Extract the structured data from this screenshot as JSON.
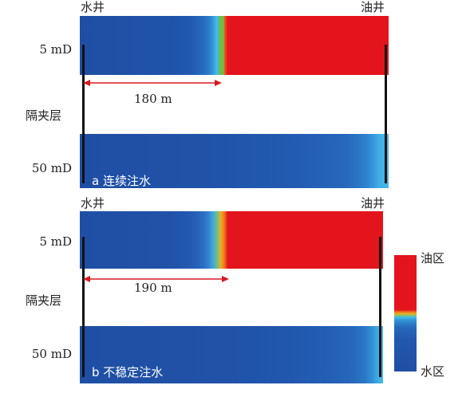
{
  "panel_a": {
    "water_well": "水井",
    "oil_well": "油井",
    "top_perm": "5 mD",
    "interlayer": "隔夹层",
    "bottom_perm": "50 mD",
    "distance": "180 m",
    "caption": "a 连续注水"
  },
  "panel_b": {
    "water_well": "水井",
    "oil_well": "油井",
    "top_perm": "5 mD",
    "interlayer": "隔夹层",
    "bottom_perm": "50 mD",
    "distance": "190 m",
    "caption": "b 不稳定注水"
  },
  "legend": {
    "oil_zone": "油区",
    "water_zone": "水区"
  },
  "colors": {
    "oil_red": "#e3141c",
    "water_blue": "#1d4fa8",
    "arrow_red": "#d71920",
    "well_black": "#111111"
  }
}
